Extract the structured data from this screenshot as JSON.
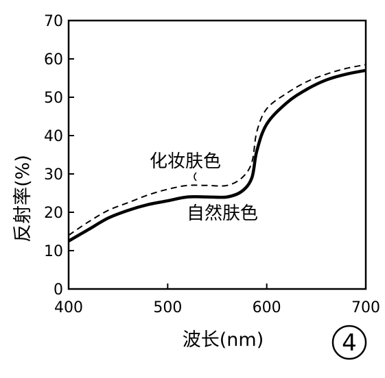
{
  "chart_data": {
    "type": "line",
    "xlabel": "波长(nm)",
    "ylabel": "反射率(%)",
    "xlim": [
      400,
      700
    ],
    "ylim": [
      0,
      70
    ],
    "xticks": [
      "400",
      "500",
      "600",
      "700"
    ],
    "yticks": [
      "0",
      "10",
      "20",
      "30",
      "40",
      "50",
      "60",
      "70"
    ],
    "grid": false,
    "figure_number": "4",
    "series": [
      {
        "name": "化妆肤色",
        "style": "dashed",
        "x": [
          400,
          420,
          440,
          460,
          480,
          500,
          520,
          540,
          560,
          575,
          585,
          590,
          600,
          620,
          640,
          660,
          680,
          700
        ],
        "y": [
          14,
          17.5,
          20.5,
          22.5,
          24.5,
          26,
          27,
          27,
          27,
          29,
          33,
          41,
          47,
          51,
          54,
          56,
          57.5,
          58.5
        ]
      },
      {
        "name": "自然肤色",
        "style": "solid",
        "x": [
          400,
          420,
          440,
          460,
          480,
          500,
          520,
          540,
          560,
          575,
          585,
          590,
          600,
          620,
          640,
          660,
          680,
          700
        ],
        "y": [
          12.5,
          15.5,
          18.5,
          20.5,
          22,
          23,
          24,
          24,
          24,
          25.5,
          29,
          36,
          43,
          48.5,
          52,
          54.5,
          56,
          57
        ]
      }
    ]
  }
}
